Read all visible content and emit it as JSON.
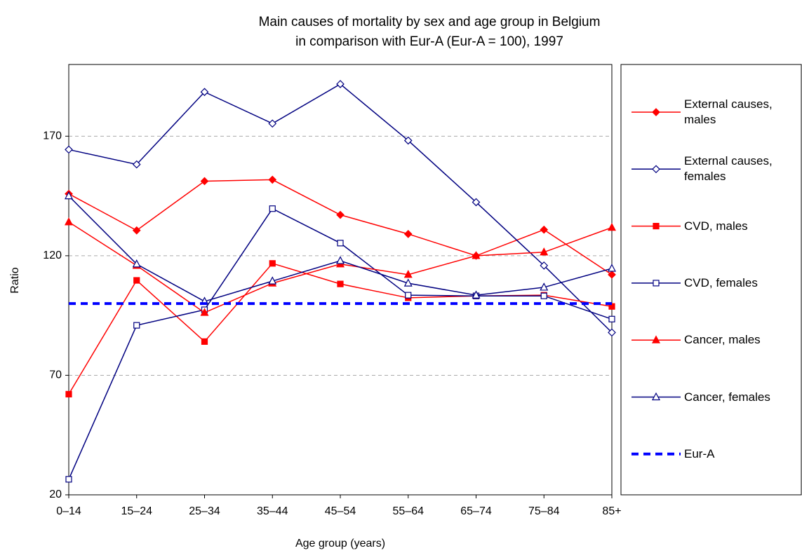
{
  "chart_data": {
    "type": "line",
    "title": [
      "Main causes of mortality by sex and age group in Belgium",
      "in comparison with Eur-A (Eur-A = 100), 1997"
    ],
    "x_label": "Age group (years)",
    "y_label": "Ratio",
    "categories": [
      "0–14",
      "15–24",
      "25–34",
      "35–44",
      "45–54",
      "55–64",
      "65–74",
      "75–84",
      "85+"
    ],
    "ylim": [
      20,
      200
    ],
    "yticks": [
      20,
      70,
      120,
      170
    ],
    "grid": true,
    "legend": "right",
    "series": [
      {
        "name": "External causes, males",
        "color": "#ff0000",
        "marker": "diamond",
        "filled": true,
        "values": [
          145.9,
          130.6,
          151.2,
          151.8,
          137.1,
          129.1,
          120,
          130.9,
          112.1
        ]
      },
      {
        "name": "External causes, females",
        "color": "#000080",
        "marker": "diamond",
        "filled": false,
        "values": [
          164.4,
          158.2,
          188.5,
          175.3,
          191.8,
          168.2,
          142.4,
          115.9,
          87.9
        ]
      },
      {
        "name": "CVD, males",
        "color": "#ff0000",
        "marker": "square",
        "filled": true,
        "values": [
          62.1,
          109.7,
          84.1,
          116.8,
          108.2,
          102.4,
          103.2,
          103.5,
          98.8
        ]
      },
      {
        "name": "CVD, females",
        "color": "#000080",
        "marker": "square",
        "filled": false,
        "values": [
          26.5,
          90.9,
          97.4,
          139.7,
          125.3,
          103.5,
          103.2,
          103.2,
          93.5
        ]
      },
      {
        "name": "Cancer, males",
        "color": "#ff0000",
        "marker": "triangle",
        "filled": true,
        "values": [
          134.1,
          115.9,
          96.2,
          108.5,
          116.5,
          112.1,
          120,
          121.5,
          131.8
        ]
      },
      {
        "name": "Cancer, females",
        "color": "#000080",
        "marker": "triangle",
        "filled": false,
        "values": [
          145,
          116.5,
          100.9,
          109.4,
          117.9,
          108.5,
          103.5,
          106.8,
          114.7
        ]
      },
      {
        "name": "Eur-A",
        "color": "#0000ff",
        "marker": "none",
        "dashed": true,
        "values": [
          100,
          100,
          100,
          100,
          100,
          100,
          100,
          100,
          100
        ]
      }
    ]
  }
}
